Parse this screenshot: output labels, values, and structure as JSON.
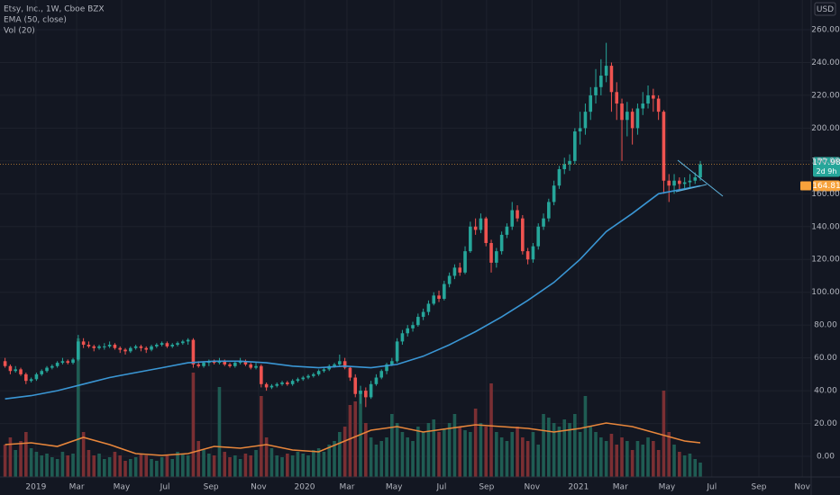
{
  "chart_data": {
    "type": "candlestick",
    "title": "Etsy, Inc., 1W, Cboe BZX",
    "indicator_labels": [
      "EMA (50, close)",
      "Vol (20)"
    ],
    "currency": "USD",
    "countdown": "2d 9h",
    "up_color": "#26a69a",
    "down_color": "#ef5350",
    "volume_up_color": "#1f5c53",
    "volume_down_color": "#7a2f33",
    "ema_color": "#3a96d4",
    "vol_ma_color": "#e8863b",
    "ema_label_color": "#f7a23b",
    "grid": true,
    "xlim": [
      -0.97,
      154.2
    ],
    "ylim": [
      -12.6,
      278.1
    ],
    "volume_lim": [
      0,
      265
    ],
    "yticks": [
      {
        "value": 0,
        "label": "0.00"
      },
      {
        "value": 20,
        "label": "20.00"
      },
      {
        "value": 40,
        "label": "40.00"
      },
      {
        "value": 60,
        "label": "60.00"
      },
      {
        "value": 80,
        "label": "80.00"
      },
      {
        "value": 100,
        "label": "100.00"
      },
      {
        "value": 120,
        "label": "120.00"
      },
      {
        "value": 140,
        "label": "140.00"
      },
      {
        "value": 160,
        "label": "160.00"
      },
      {
        "value": 180,
        "label": "180.00"
      },
      {
        "value": 200,
        "label": "200.00"
      },
      {
        "value": 220,
        "label": "220.00"
      },
      {
        "value": 240,
        "label": "240.00"
      },
      {
        "value": 260,
        "label": "260.00"
      }
    ],
    "xticks": [
      {
        "value": 5.9,
        "label": "2019"
      },
      {
        "value": 13.7,
        "label": "Mar"
      },
      {
        "value": 22.3,
        "label": "May"
      },
      {
        "value": 30.6,
        "label": "Jul"
      },
      {
        "value": 39.4,
        "label": "Sep"
      },
      {
        "value": 48.5,
        "label": "Nov"
      },
      {
        "value": 57.3,
        "label": "2020"
      },
      {
        "value": 65.4,
        "label": "Mar"
      },
      {
        "value": 74.4,
        "label": "May"
      },
      {
        "value": 83.5,
        "label": "Jul"
      },
      {
        "value": 92.1,
        "label": "Sep"
      },
      {
        "value": 100.8,
        "label": "Nov"
      },
      {
        "value": 109.7,
        "label": "2021"
      },
      {
        "value": 117.7,
        "label": "Mar"
      },
      {
        "value": 126.6,
        "label": "May"
      },
      {
        "value": 135.2,
        "label": "Jul"
      },
      {
        "value": 144.2,
        "label": "Sep"
      },
      {
        "value": 152.5,
        "label": "Nov"
      }
    ],
    "candles": [
      [
        58,
        60,
        54,
        55
      ],
      [
        55,
        56,
        50,
        52
      ],
      [
        52,
        55,
        51,
        53
      ],
      [
        53,
        54,
        49,
        50
      ],
      [
        50,
        51,
        44,
        46
      ],
      [
        46,
        48,
        45,
        47
      ],
      [
        47,
        51,
        46,
        50
      ],
      [
        50,
        53,
        49,
        52
      ],
      [
        52,
        55,
        51,
        54
      ],
      [
        54,
        56,
        53,
        55
      ],
      [
        55,
        58,
        54,
        57
      ],
      [
        57,
        60,
        56,
        58
      ],
      [
        58,
        59,
        56,
        57
      ],
      [
        57,
        60,
        56,
        59
      ],
      [
        59,
        74,
        58,
        70
      ],
      [
        70,
        72,
        66,
        68
      ],
      [
        68,
        70,
        66,
        67
      ],
      [
        67,
        68,
        64,
        66
      ],
      [
        66,
        68,
        65,
        67
      ],
      [
        67,
        69,
        65,
        67
      ],
      [
        67,
        70,
        66,
        68
      ],
      [
        68,
        69,
        65,
        66
      ],
      [
        66,
        67,
        63,
        65
      ],
      [
        65,
        66,
        62,
        64
      ],
      [
        64,
        67,
        63,
        66
      ],
      [
        66,
        68,
        65,
        67
      ],
      [
        67,
        68,
        64,
        66
      ],
      [
        66,
        67,
        63,
        65
      ],
      [
        65,
        68,
        64,
        67
      ],
      [
        67,
        69,
        66,
        68
      ],
      [
        68,
        70,
        67,
        69
      ],
      [
        69,
        70,
        66,
        67
      ],
      [
        67,
        69,
        66,
        68
      ],
      [
        68,
        70,
        67,
        69
      ],
      [
        69,
        71,
        68,
        70
      ],
      [
        70,
        72,
        68,
        71
      ],
      [
        71,
        72,
        54,
        56
      ],
      [
        56,
        58,
        54,
        55
      ],
      [
        55,
        58,
        54,
        57
      ],
      [
        57,
        59,
        55,
        58
      ],
      [
        58,
        59,
        56,
        57
      ],
      [
        57,
        60,
        56,
        58
      ],
      [
        58,
        59,
        55,
        56
      ],
      [
        56,
        57,
        54,
        55
      ],
      [
        55,
        58,
        54,
        57
      ],
      [
        57,
        60,
        56,
        58
      ],
      [
        58,
        59,
        55,
        56
      ],
      [
        56,
        57,
        53,
        54
      ],
      [
        54,
        57,
        53,
        55
      ],
      [
        55,
        56,
        42,
        44
      ],
      [
        44,
        45,
        40,
        42
      ],
      [
        42,
        44,
        41,
        43
      ],
      [
        43,
        45,
        42,
        44
      ],
      [
        44,
        46,
        43,
        45
      ],
      [
        45,
        46,
        43,
        44
      ],
      [
        44,
        47,
        43,
        46
      ],
      [
        46,
        48,
        45,
        47
      ],
      [
        47,
        49,
        46,
        48
      ],
      [
        48,
        50,
        47,
        49
      ],
      [
        49,
        51,
        48,
        50
      ],
      [
        50,
        53,
        49,
        52
      ],
      [
        52,
        54,
        51,
        53
      ],
      [
        53,
        56,
        52,
        55
      ],
      [
        55,
        57,
        54,
        56
      ],
      [
        56,
        62,
        55,
        58
      ],
      [
        58,
        60,
        53,
        54
      ],
      [
        54,
        55,
        46,
        48
      ],
      [
        48,
        50,
        36,
        38
      ],
      [
        38,
        43,
        32,
        40
      ],
      [
        40,
        42,
        30,
        36
      ],
      [
        36,
        46,
        35,
        44
      ],
      [
        44,
        50,
        43,
        48
      ],
      [
        48,
        53,
        47,
        52
      ],
      [
        52,
        57,
        50,
        56
      ],
      [
        56,
        60,
        55,
        58
      ],
      [
        58,
        72,
        57,
        70
      ],
      [
        70,
        77,
        68,
        75
      ],
      [
        75,
        80,
        73,
        78
      ],
      [
        78,
        82,
        76,
        80
      ],
      [
        80,
        87,
        79,
        85
      ],
      [
        85,
        90,
        83,
        88
      ],
      [
        88,
        95,
        86,
        93
      ],
      [
        93,
        100,
        92,
        98
      ],
      [
        98,
        101,
        94,
        96
      ],
      [
        96,
        107,
        95,
        105
      ],
      [
        105,
        112,
        103,
        110
      ],
      [
        110,
        117,
        108,
        115
      ],
      [
        115,
        118,
        110,
        112
      ],
      [
        112,
        128,
        111,
        125
      ],
      [
        125,
        143,
        124,
        140
      ],
      [
        140,
        145,
        135,
        138
      ],
      [
        138,
        148,
        136,
        145
      ],
      [
        145,
        146,
        128,
        130
      ],
      [
        130,
        132,
        112,
        118
      ],
      [
        118,
        127,
        115,
        125
      ],
      [
        125,
        137,
        123,
        135
      ],
      [
        135,
        142,
        133,
        140
      ],
      [
        140,
        155,
        138,
        150
      ],
      [
        150,
        153,
        143,
        145
      ],
      [
        145,
        147,
        123,
        125
      ],
      [
        125,
        127,
        117,
        120
      ],
      [
        120,
        130,
        118,
        128
      ],
      [
        128,
        142,
        126,
        140
      ],
      [
        140,
        148,
        138,
        145
      ],
      [
        145,
        157,
        143,
        155
      ],
      [
        155,
        168,
        153,
        165
      ],
      [
        165,
        177,
        163,
        175
      ],
      [
        175,
        182,
        172,
        178
      ],
      [
        178,
        184,
        174,
        180
      ],
      [
        180,
        200,
        178,
        198
      ],
      [
        198,
        210,
        190,
        200
      ],
      [
        200,
        215,
        196,
        210
      ],
      [
        210,
        225,
        205,
        220
      ],
      [
        220,
        236,
        215,
        225
      ],
      [
        225,
        242,
        220,
        232
      ],
      [
        232,
        252,
        228,
        238
      ],
      [
        238,
        240,
        210,
        222
      ],
      [
        222,
        228,
        205,
        215
      ],
      [
        215,
        218,
        180,
        205
      ],
      [
        205,
        216,
        195,
        210
      ],
      [
        210,
        212,
        190,
        200
      ],
      [
        200,
        215,
        196,
        212
      ],
      [
        212,
        222,
        208,
        215
      ],
      [
        215,
        226,
        212,
        220
      ],
      [
        220,
        224,
        210,
        218
      ],
      [
        218,
        220,
        205,
        210
      ],
      [
        210,
        211,
        160,
        168
      ],
      [
        168,
        172,
        155,
        165
      ],
      [
        165,
        172,
        160,
        168
      ],
      [
        168,
        170,
        162,
        166
      ],
      [
        166,
        170,
        163,
        167
      ],
      [
        167,
        172,
        164,
        168
      ],
      [
        168,
        173,
        166,
        170
      ],
      [
        170,
        180,
        168,
        177.98
      ]
    ],
    "volume": [
      18,
      22,
      15,
      20,
      25,
      16,
      14,
      12,
      13,
      11,
      10,
      14,
      12,
      13,
      77,
      25,
      15,
      12,
      13,
      10,
      11,
      14,
      12,
      9,
      10,
      11,
      13,
      12,
      10,
      9,
      11,
      12,
      10,
      14,
      13,
      12,
      58,
      20,
      15,
      13,
      12,
      50,
      14,
      11,
      12,
      10,
      13,
      12,
      15,
      45,
      22,
      16,
      12,
      11,
      13,
      12,
      14,
      13,
      12,
      15,
      16,
      14,
      18,
      20,
      25,
      28,
      40,
      42,
      48,
      30,
      22,
      18,
      20,
      22,
      35,
      30,
      25,
      22,
      20,
      28,
      25,
      30,
      32,
      25,
      27,
      30,
      35,
      28,
      26,
      25,
      38,
      30,
      28,
      52,
      25,
      22,
      20,
      25,
      28,
      22,
      20,
      25,
      18,
      35,
      33,
      30,
      28,
      32,
      30,
      35,
      25,
      45,
      28,
      25,
      22,
      20,
      24,
      18,
      22,
      20,
      15,
      20,
      18,
      22,
      20,
      15,
      48,
      25,
      18,
      14,
      12,
      13,
      10,
      8
    ],
    "ema": {
      "x": [
        0,
        5,
        10,
        15,
        20,
        25,
        30,
        35,
        40,
        45,
        50,
        55,
        60,
        65,
        70,
        75,
        80,
        85,
        90,
        95,
        100,
        105,
        110,
        115,
        120,
        125,
        130,
        133
      ],
      "values": [
        35,
        37,
        40,
        44,
        48,
        51,
        54,
        57,
        58,
        58,
        57,
        55,
        54,
        55,
        54,
        56,
        61,
        68,
        76,
        85,
        95,
        106,
        120,
        137,
        148,
        160,
        163,
        164.81
      ]
    },
    "vol_ma": {
      "x": [
        0,
        5,
        10,
        15,
        20,
        25,
        30,
        35,
        40,
        45,
        50,
        55,
        60,
        65,
        70,
        75,
        80,
        85,
        90,
        95,
        100,
        105,
        110,
        115,
        120,
        125,
        130,
        133
      ],
      "values": [
        18,
        19,
        17,
        22,
        18,
        13,
        12,
        13,
        17,
        16,
        18,
        15,
        14,
        20,
        26,
        28,
        25,
        27,
        29,
        28,
        27,
        25,
        27,
        30,
        28,
        24,
        20,
        19
      ]
    }
  }
}
